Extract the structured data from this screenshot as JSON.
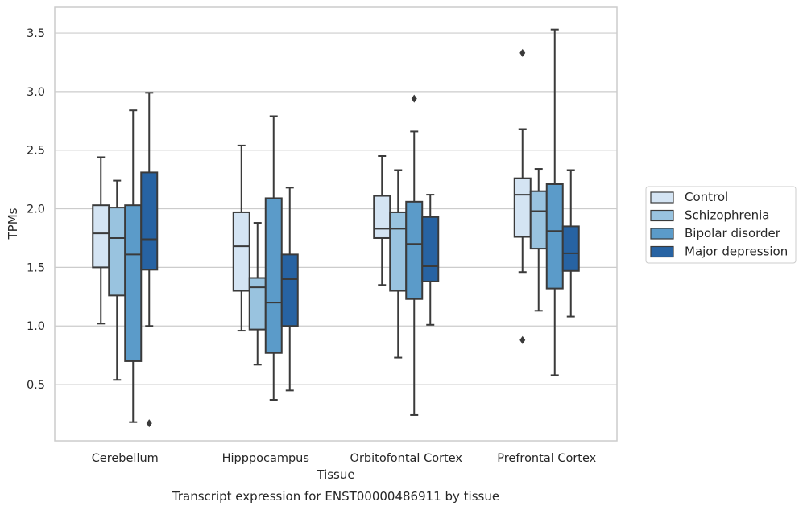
{
  "chart_data": {
    "type": "box",
    "xlabel": "Tissue",
    "ylabel": "TPMs",
    "caption": "Transcript expression for ENST00000486911 by tissue",
    "categories": [
      "Cerebellum",
      "Hipppocampus",
      "Orbitofontal Cortex",
      "Prefrontal Cortex"
    ],
    "ylim": [
      0.02,
      3.72
    ],
    "yticks": [
      0.5,
      1.0,
      1.5,
      2.0,
      2.5,
      3.0,
      3.5
    ],
    "ytick_labels": [
      "0.5",
      "1.0",
      "1.5",
      "2.0",
      "2.5",
      "3.0",
      "3.5"
    ],
    "grid": "horizontal",
    "legend_position": "right",
    "series": [
      {
        "name": "Control",
        "color": "#d4e4f3",
        "boxes": [
          {
            "min": 1.02,
            "q1": 1.5,
            "median": 1.79,
            "q3": 2.03,
            "max": 2.44,
            "outliers": []
          },
          {
            "min": 0.96,
            "q1": 1.3,
            "median": 1.68,
            "q3": 1.97,
            "max": 2.54,
            "outliers": []
          },
          {
            "min": 1.35,
            "q1": 1.75,
            "median": 1.83,
            "q3": 2.11,
            "max": 2.45,
            "outliers": []
          },
          {
            "min": 1.46,
            "q1": 1.76,
            "median": 2.12,
            "q3": 2.26,
            "max": 2.68,
            "outliers": [
              3.33,
              0.88
            ]
          }
        ]
      },
      {
        "name": "Schizophrenia",
        "color": "#99c3df",
        "boxes": [
          {
            "min": 0.54,
            "q1": 1.26,
            "median": 1.75,
            "q3": 2.01,
            "max": 2.24,
            "outliers": []
          },
          {
            "min": 0.67,
            "q1": 0.97,
            "median": 1.33,
            "q3": 1.41,
            "max": 1.88,
            "outliers": []
          },
          {
            "min": 0.73,
            "q1": 1.3,
            "median": 1.83,
            "q3": 1.97,
            "max": 2.33,
            "outliers": []
          },
          {
            "min": 1.13,
            "q1": 1.66,
            "median": 1.98,
            "q3": 2.15,
            "max": 2.34,
            "outliers": []
          }
        ]
      },
      {
        "name": "Bipolar disorder",
        "color": "#5b9bc9",
        "boxes": [
          {
            "min": 0.18,
            "q1": 0.7,
            "median": 1.61,
            "q3": 2.03,
            "max": 2.84,
            "outliers": []
          },
          {
            "min": 0.37,
            "q1": 0.77,
            "median": 1.2,
            "q3": 2.09,
            "max": 2.79,
            "outliers": []
          },
          {
            "min": 0.24,
            "q1": 1.23,
            "median": 1.7,
            "q3": 2.06,
            "max": 2.66,
            "outliers": [
              2.94
            ]
          },
          {
            "min": 0.58,
            "q1": 1.32,
            "median": 1.81,
            "q3": 2.21,
            "max": 3.53,
            "outliers": []
          }
        ]
      },
      {
        "name": "Major depression",
        "color": "#2763a3",
        "boxes": [
          {
            "min": 1.0,
            "q1": 1.48,
            "median": 1.74,
            "q3": 2.31,
            "max": 2.99,
            "outliers": [
              0.17
            ]
          },
          {
            "min": 0.45,
            "q1": 1.0,
            "median": 1.4,
            "q3": 1.61,
            "max": 2.18,
            "outliers": []
          },
          {
            "min": 1.01,
            "q1": 1.38,
            "median": 1.51,
            "q3": 1.93,
            "max": 2.12,
            "outliers": []
          },
          {
            "min": 1.08,
            "q1": 1.47,
            "median": 1.62,
            "q3": 1.85,
            "max": 2.33,
            "outliers": []
          }
        ]
      }
    ]
  }
}
